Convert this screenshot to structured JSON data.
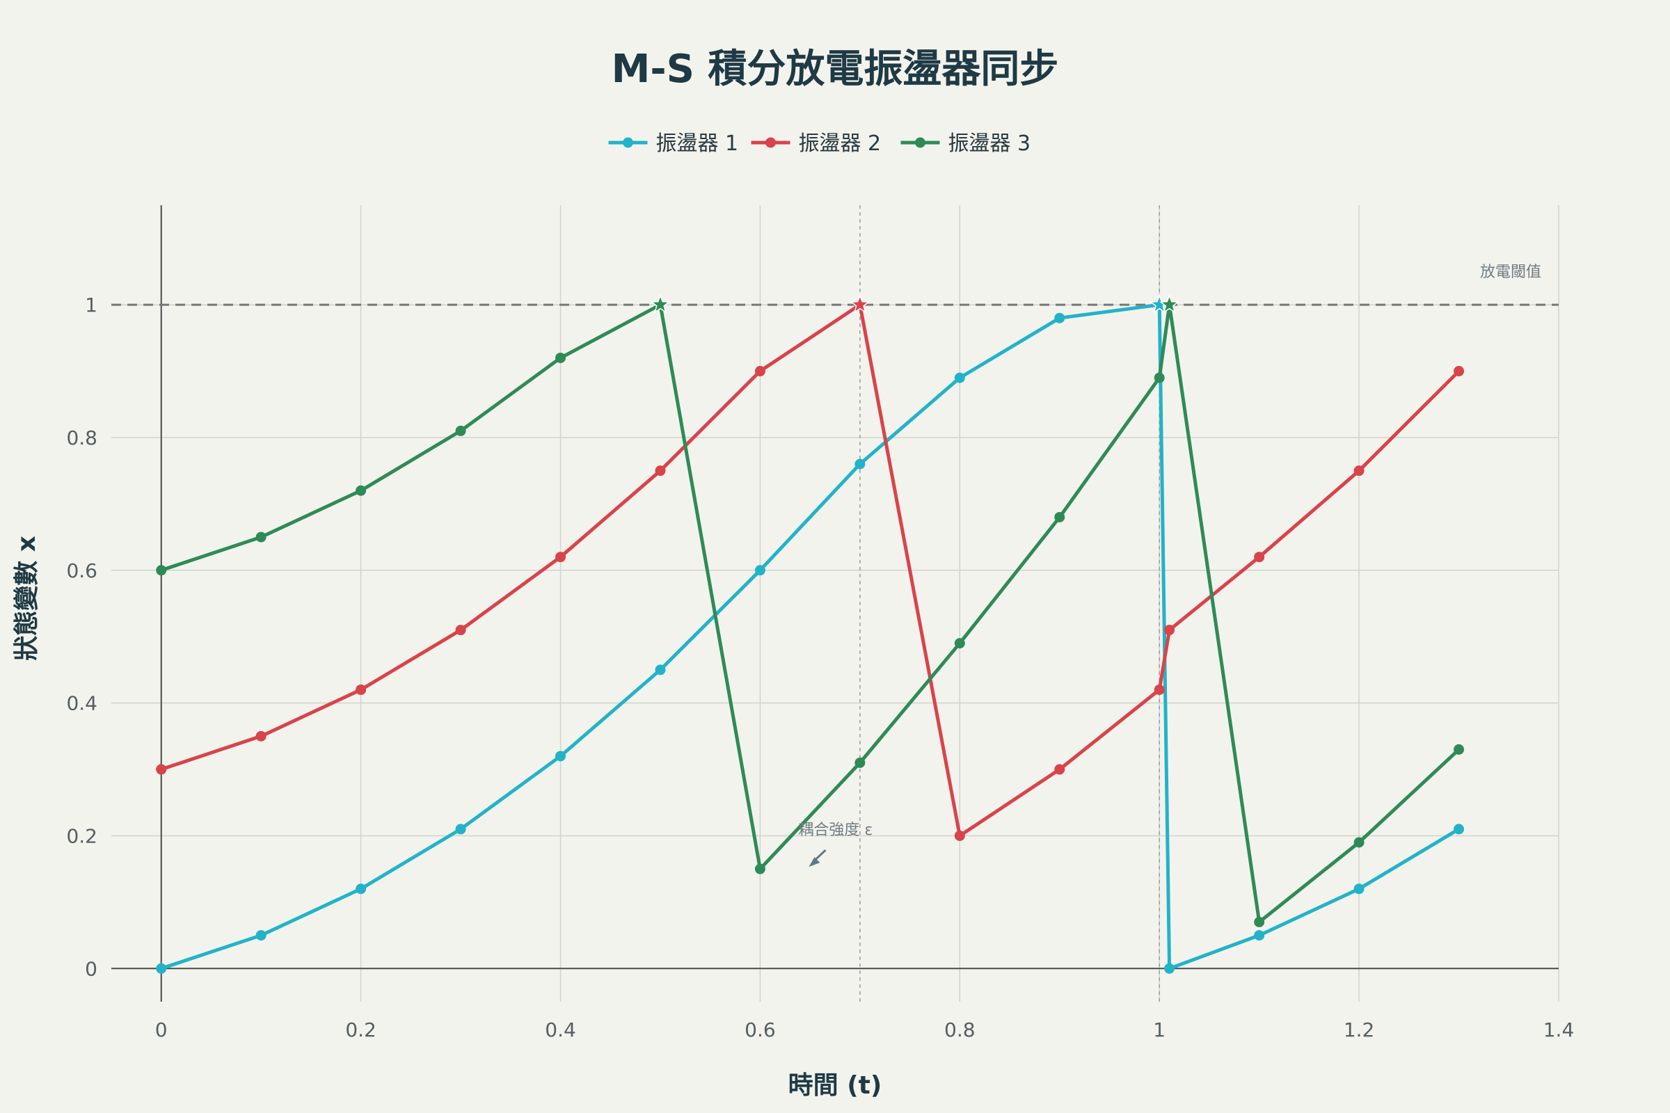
{
  "chart_data": {
    "type": "line",
    "title": "M-S 積分放電振盪器同步",
    "xlabel": "時間 (t)",
    "ylabel": "狀態變數 x",
    "xlim": [
      -0.05,
      1.4
    ],
    "ylim": [
      -0.05,
      1.15
    ],
    "xticks": [
      0,
      0.2,
      0.4,
      0.6,
      0.8,
      1,
      1.2,
      1.4
    ],
    "xtick_labels": [
      "0",
      "0.2",
      "0.4",
      "0.6",
      "0.8",
      "1",
      "1.2",
      "1.4"
    ],
    "yticks": [
      0,
      0.2,
      0.4,
      0.6,
      0.8,
      1
    ],
    "ytick_labels": [
      "0",
      "0.2",
      "0.4",
      "0.6",
      "0.8",
      "1"
    ],
    "grid": true,
    "legend_position": "top-center",
    "threshold": {
      "value": 1,
      "label": "放電閾值"
    },
    "vertical_markers": [
      0.7,
      1.0
    ],
    "annotations": [
      {
        "text": "耦合強度 ε",
        "x": 0.6,
        "y": 0.17
      }
    ],
    "series": [
      {
        "name": "振盪器 1",
        "color": "#22b3c8",
        "x": [
          0,
          0.1,
          0.2,
          0.3,
          0.4,
          0.5,
          0.6,
          0.7,
          0.8,
          0.9,
          1.0,
          1.01,
          1.1,
          1.2,
          1.3
        ],
        "y": [
          0,
          0.05,
          0.12,
          0.21,
          0.32,
          0.45,
          0.6,
          0.76,
          0.89,
          0.98,
          1.0,
          0,
          0.05,
          0.12,
          0.21
        ],
        "fire_points": [
          [
            1.0,
            1.0
          ]
        ]
      },
      {
        "name": "振盪器 2",
        "color": "#d9434a",
        "x": [
          0,
          0.1,
          0.2,
          0.3,
          0.4,
          0.5,
          0.6,
          0.7,
          0.8,
          0.9,
          1.0,
          1.01,
          1.1,
          1.2,
          1.3
        ],
        "y": [
          0.3,
          0.35,
          0.42,
          0.51,
          0.62,
          0.75,
          0.9,
          1.0,
          0.2,
          0.3,
          0.42,
          0.51,
          0.62,
          0.75,
          0.9
        ],
        "fire_points": [
          [
            0.7,
            1.0
          ]
        ]
      },
      {
        "name": "振盪器 3",
        "color": "#2e8b57",
        "x": [
          0,
          0.1,
          0.2,
          0.3,
          0.4,
          0.5,
          0.6,
          0.7,
          0.8,
          0.9,
          1.0,
          1.01,
          1.1,
          1.2,
          1.3
        ],
        "y": [
          0.6,
          0.65,
          0.72,
          0.81,
          0.92,
          1.0,
          0.15,
          0.31,
          0.49,
          0.68,
          0.89,
          1.0,
          0.07,
          0.19,
          0.33
        ],
        "fire_points": [
          [
            0.5,
            1.0
          ],
          [
            1.01,
            1.0
          ]
        ]
      }
    ]
  }
}
